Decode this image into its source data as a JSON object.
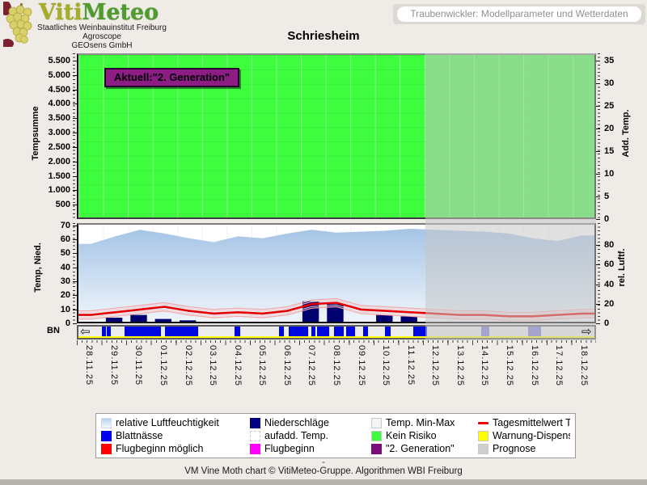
{
  "logo": {
    "viti": "Viti",
    "meteo": "Meteo",
    "sublines": [
      "Staatliches Weinbauinstitut Freiburg",
      "Agroscope",
      "GEOsens GmbH"
    ]
  },
  "header": {
    "banner": "Traubenwickler: Modellparameter und Wetterdaten"
  },
  "title": "Schriesheim",
  "icons": {
    "scroll_left": "⇦",
    "scroll_right": "⇨"
  },
  "chart_data": [
    {
      "type": "area",
      "panel": "top",
      "title": "Schriesheim",
      "ylabel_left": "Tempsumme",
      "yticks_left": [
        "500",
        "1.000",
        "1.500",
        "2.000",
        "2.500",
        "3.000",
        "3.500",
        "4.000",
        "4.500",
        "5.000",
        "5.500"
      ],
      "ylim_left": [
        0,
        5750
      ],
      "ylabel_right": "Add. Temp.",
      "yticks_right": [
        0,
        5,
        10,
        15,
        20,
        25,
        30,
        35
      ],
      "ylim_right": [
        0,
        36.6
      ],
      "grid": true,
      "background_state": {
        "label": "Kein Risiko",
        "color": "#3efc3e"
      },
      "annotation": {
        "text": "Aktuell:\"2. Generation\"",
        "bg": "#8b1d84"
      },
      "series": [
        {
          "name": "aufadd. Temp.",
          "values": [
            0,
            0,
            0,
            0,
            0,
            0,
            0,
            0,
            0,
            0,
            0,
            0,
            0,
            0,
            0,
            0,
            0,
            0,
            0,
            0,
            0
          ]
        }
      ],
      "forecast_start_category": "12.12.25"
    },
    {
      "type": "mixed",
      "panel": "bottom",
      "categories": [
        "28.11.25",
        "29.11.25",
        "30.11.25",
        "01.12.25",
        "02.12.25",
        "03.12.25",
        "04.12.25",
        "05.12.25",
        "06.12.25",
        "07.12.25",
        "08.12.25",
        "09.12.25",
        "10.12.25",
        "11.12.25",
        "12.12.25",
        "13.12.25",
        "14.12.25",
        "15.12.25",
        "16.12.25",
        "17.12.25",
        "18.12.25"
      ],
      "ylabel_left": "Temp, Nied.",
      "yticks_left": [
        0,
        10,
        20,
        30,
        40,
        50,
        60,
        70
      ],
      "ylim_left": [
        0,
        71.5
      ],
      "ylabel_right": "rel. Luftf.",
      "yticks_right": [
        0,
        20,
        40,
        60,
        80
      ],
      "ylim_right": [
        0,
        102.5
      ],
      "strip_label": "BN",
      "forecast_start_category": "12.12.25",
      "series": [
        {
          "name": "relative Luftfeuchtigkeit",
          "type": "area",
          "axis": "right",
          "color_top": "#a5c4e6",
          "color_bottom": "#eff5fb",
          "values": [
            82,
            90,
            97,
            93,
            88,
            84,
            90,
            88,
            93,
            97,
            94,
            95,
            96,
            98,
            97,
            96,
            95,
            93,
            88,
            85,
            91
          ]
        },
        {
          "name": "Tagesmittelwert Temperatur",
          "type": "line",
          "axis": "left",
          "color": "#e60000",
          "values": [
            5,
            7,
            9,
            11,
            8,
            6,
            7,
            6,
            8,
            13,
            14,
            9,
            8,
            7,
            6,
            5,
            5,
            4,
            4,
            5,
            6
          ]
        },
        {
          "name": "Temp. Min-Max",
          "type": "band",
          "axis": "left",
          "color": "#f3a8a8",
          "min": [
            2,
            4,
            6,
            8,
            5,
            3,
            4,
            3,
            5,
            10,
            11,
            6,
            5,
            4,
            3,
            2,
            2,
            1,
            1,
            2,
            3
          ],
          "max": [
            8,
            10,
            12,
            14,
            11,
            9,
            10,
            9,
            11,
            16,
            17,
            12,
            11,
            10,
            9,
            8,
            8,
            7,
            7,
            8,
            9
          ]
        },
        {
          "name": "Niederschläge",
          "type": "bar",
          "axis": "left",
          "color": "#00006e",
          "values": [
            0,
            3,
            5,
            2,
            1,
            0,
            0,
            0,
            0,
            15,
            13,
            0,
            5,
            4,
            0,
            0,
            0,
            0,
            0,
            0,
            0
          ]
        },
        {
          "name": "Blattnässe",
          "type": "strip",
          "color": "#0008e0",
          "forecast_color": "#7d7dd8",
          "segments_days": [
            {
              "start": 0.95,
              "end": 1.1,
              "phase": "measured"
            },
            {
              "start": 1.15,
              "end": 1.32,
              "phase": "measured"
            },
            {
              "start": 1.85,
              "end": 3.35,
              "phase": "measured"
            },
            {
              "start": 3.5,
              "end": 4.85,
              "phase": "measured"
            },
            {
              "start": 6.3,
              "end": 6.55,
              "phase": "measured"
            },
            {
              "start": 8.1,
              "end": 8.3,
              "phase": "measured"
            },
            {
              "start": 8.5,
              "end": 9.3,
              "phase": "measured"
            },
            {
              "start": 9.42,
              "end": 9.58,
              "phase": "measured"
            },
            {
              "start": 9.65,
              "end": 10.15,
              "phase": "measured"
            },
            {
              "start": 10.35,
              "end": 10.72,
              "phase": "measured"
            },
            {
              "start": 10.82,
              "end": 11.2,
              "phase": "measured"
            },
            {
              "start": 11.5,
              "end": 11.72,
              "phase": "measured"
            },
            {
              "start": 12.4,
              "end": 12.62,
              "phase": "measured"
            },
            {
              "start": 13.55,
              "end": 14.1,
              "phase": "measured"
            },
            {
              "start": 16.3,
              "end": 16.62,
              "phase": "forecast"
            },
            {
              "start": 18.2,
              "end": 18.72,
              "phase": "forecast"
            }
          ]
        }
      ]
    }
  ],
  "legend": {
    "items": [
      {
        "label": "relative Luftfeuchtigkeit",
        "swatch": "gradient",
        "color": "#b9d4ef"
      },
      {
        "label": "Blattnässe",
        "swatch": "solid",
        "color": "#0000ee"
      },
      {
        "label": "Flugbeginn möglich",
        "swatch": "solid",
        "color": "#fe0000"
      },
      {
        "label": "Niederschläge",
        "swatch": "solid",
        "color": "#000080"
      },
      {
        "label": "aufadd. Temp.",
        "swatch": "dashed",
        "color": "#ffffff"
      },
      {
        "label": "Flugbeginn",
        "swatch": "solid",
        "color": "#ff00ff"
      },
      {
        "label": "Temp. Min-Max",
        "swatch": "solid",
        "color": "#f4f4f4"
      },
      {
        "label": "Kein Risiko",
        "swatch": "solid",
        "color": "#3efc3e"
      },
      {
        "label": "\"2. Generation\"",
        "swatch": "solid",
        "color": "#7a0d7a"
      },
      {
        "label": "Tagesmittelwert Temperatur",
        "swatch": "line",
        "color": "#e60000"
      },
      {
        "label": "Warnung-Dispenser aufhängen",
        "swatch": "solid",
        "color": "#ffff00"
      },
      {
        "label": "Prognose",
        "swatch": "solid",
        "color": "#cfcfcf"
      }
    ]
  },
  "footer": {
    "dash": "-",
    "credit": "VM Vine Moth chart © VitiMeteo-Gruppe. Algorithmen WBI Freiburg"
  }
}
